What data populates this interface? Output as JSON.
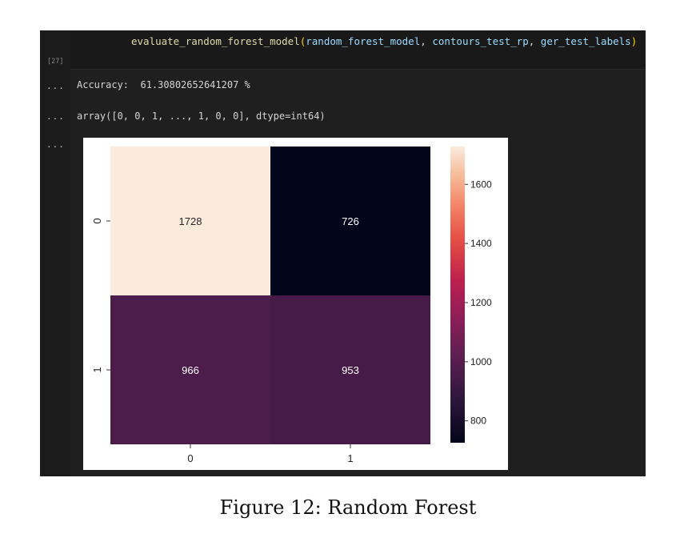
{
  "cell": {
    "exec_count": "[27]",
    "code": {
      "func": "evaluate_random_forest_model",
      "open": "(",
      "arg1": "random_forest_model",
      "sep1": ", ",
      "arg2": "contours_test_rp",
      "sep2": ", ",
      "arg3": "ger_test_labels",
      "close": ")"
    }
  },
  "outputs": {
    "ellipsis": "...",
    "accuracy_line": "Accuracy:  61.30802652641207 %",
    "array_line": "array([0, 0, 1, ..., 1, 0, 0], dtype=int64)"
  },
  "colors": {
    "func": "#dcdcaa",
    "param": "#9cdcfe",
    "punct": "#d4d4d4",
    "paren": "#ffd700"
  },
  "chart_data": {
    "type": "heatmap",
    "x_tick_labels": [
      "0",
      "1"
    ],
    "y_tick_labels": [
      "0",
      "1"
    ],
    "values": [
      [
        1728,
        726
      ],
      [
        966,
        953
      ]
    ],
    "colormap": "rocket",
    "colorbar": {
      "min": 726,
      "max": 1728,
      "ticks": [
        800,
        1000,
        1200,
        1400,
        1600
      ],
      "tick_labels": [
        "800",
        "1000",
        "1200",
        "1400",
        "1600"
      ]
    }
  },
  "caption": "Figure 12: Random Forest"
}
